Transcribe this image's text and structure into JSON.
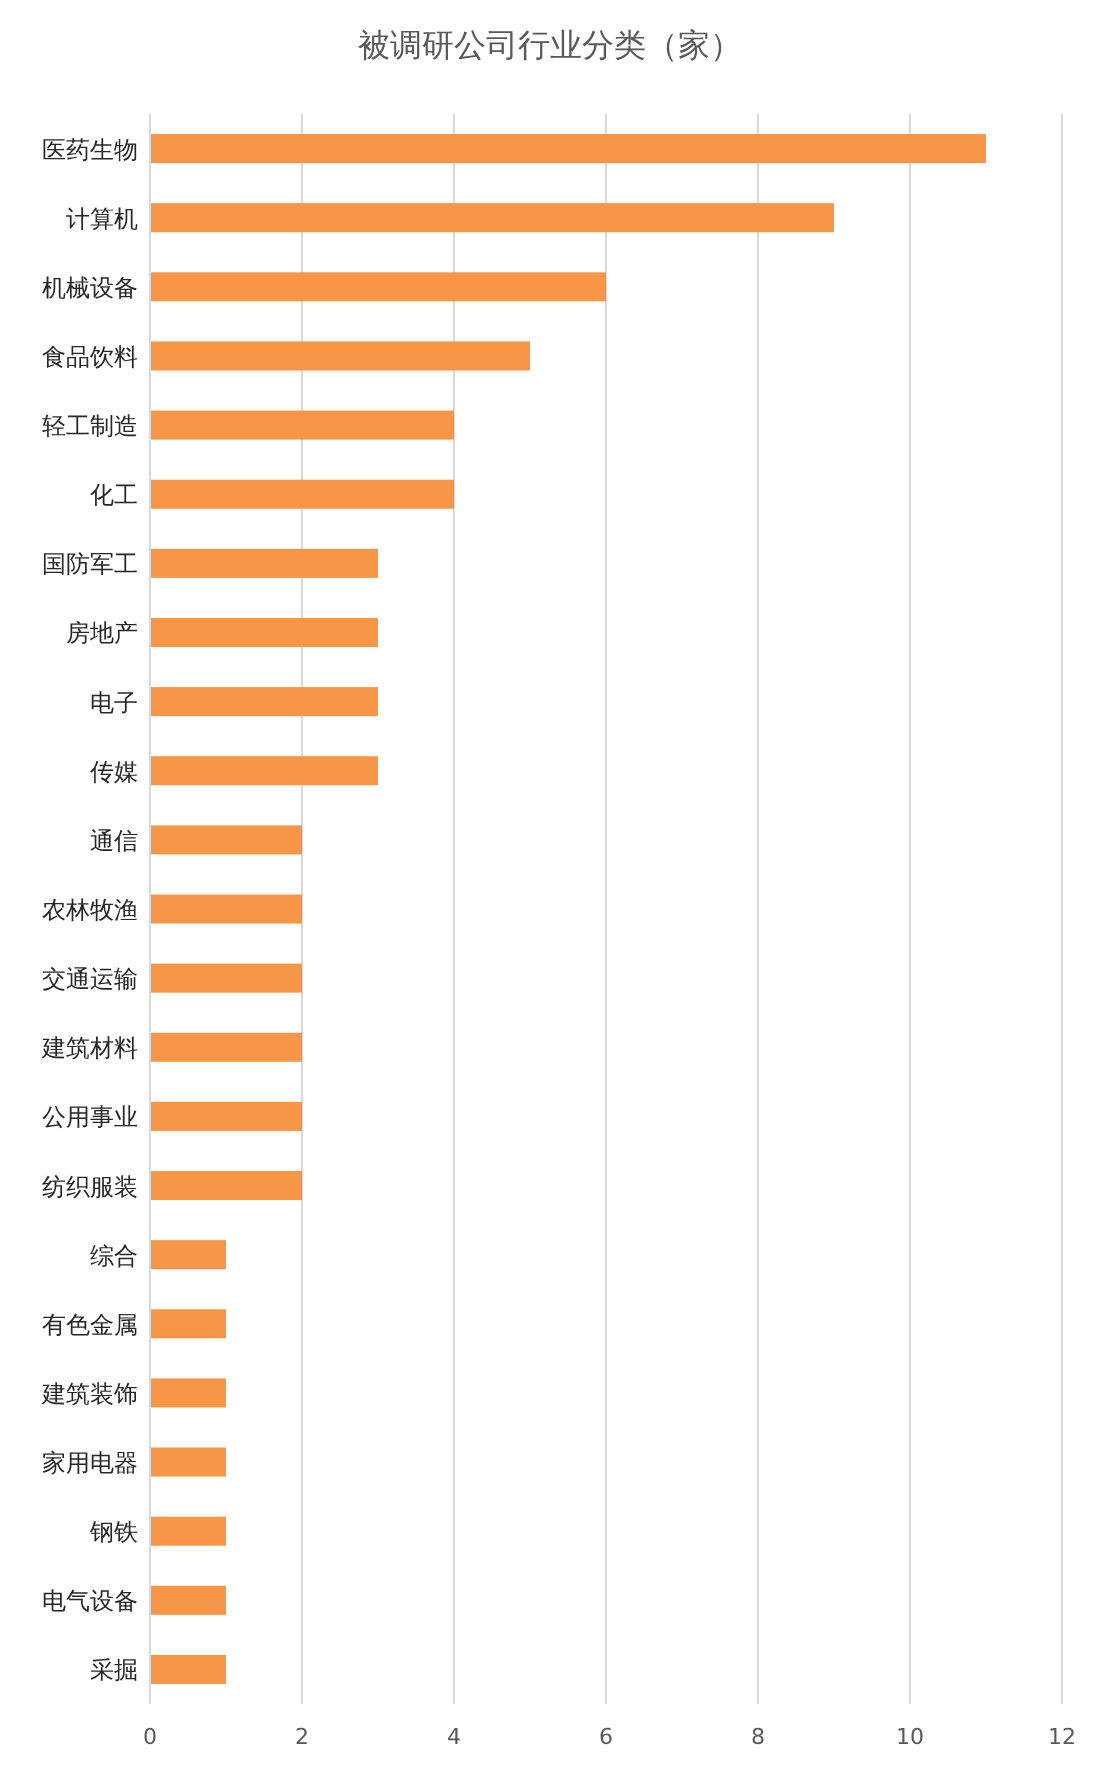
{
  "chart_data": {
    "type": "bar",
    "orientation": "horizontal",
    "title": "被调研公司行业分类（家）",
    "categories": [
      "医药生物",
      "计算机",
      "机械设备",
      "食品饮料",
      "轻工制造",
      "化工",
      "国防军工",
      "房地产",
      "电子",
      "传媒",
      "通信",
      "农林牧渔",
      "交通运输",
      "建筑材料",
      "公用事业",
      "纺织服装",
      "综合",
      "有色金属",
      "建筑装饰",
      "家用电器",
      "钢铁",
      "电气设备",
      "采掘"
    ],
    "values": [
      11,
      9,
      6,
      5,
      4,
      4,
      3,
      3,
      3,
      3,
      2,
      2,
      2,
      2,
      2,
      2,
      1,
      1,
      1,
      1,
      1,
      1,
      1
    ],
    "color": "#f79646",
    "xlim": [
      0,
      12
    ],
    "xticks": [
      0,
      2,
      4,
      6,
      8,
      10,
      12
    ],
    "grid": "x"
  }
}
